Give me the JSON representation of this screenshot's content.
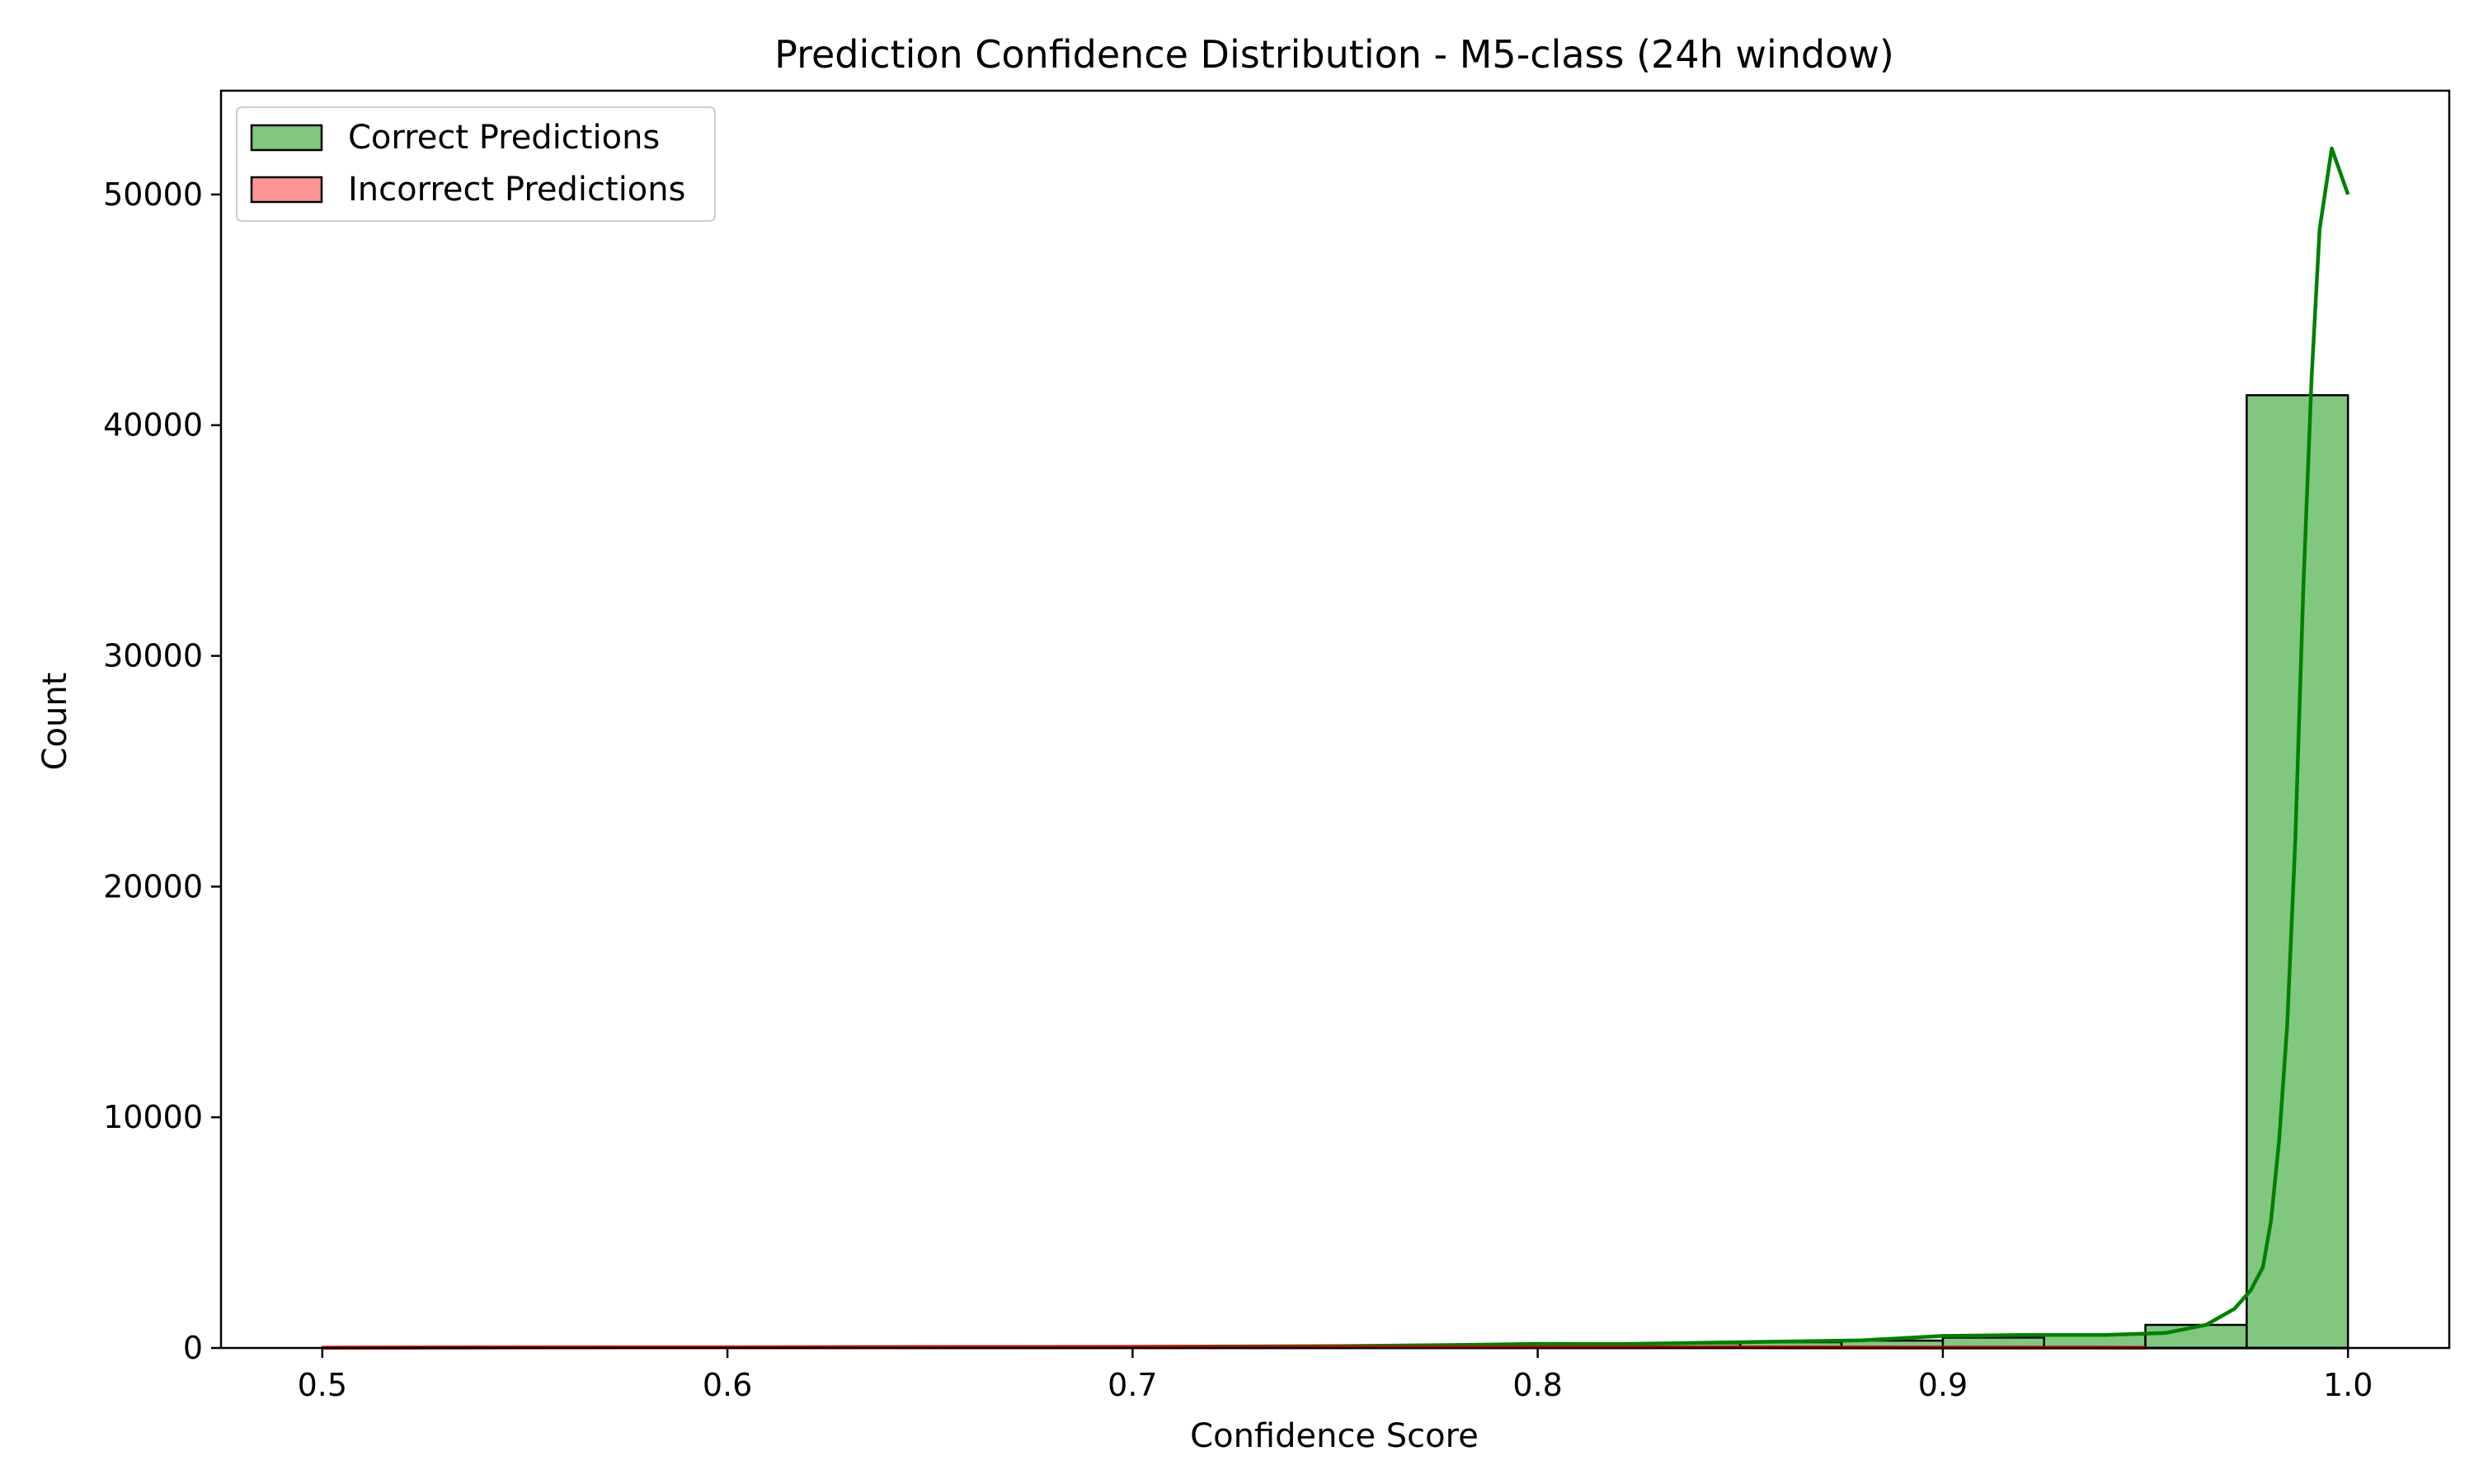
{
  "chart_data": {
    "type": "bar",
    "title": "Prediction Confidence Distribution - M5-class (24h window)",
    "xlabel": "Confidence Score",
    "ylabel": "Count",
    "xlim": [
      0.475,
      1.025
    ],
    "ylim": [
      0,
      54500
    ],
    "xticks": [
      0.5,
      0.6,
      0.7,
      0.8,
      0.9,
      1.0
    ],
    "xtick_labels": [
      "0.5",
      "0.6",
      "0.7",
      "0.8",
      "0.9",
      "1.0"
    ],
    "yticks": [
      0,
      10000,
      20000,
      30000,
      40000,
      50000
    ],
    "ytick_labels": [
      "0",
      "10000",
      "20000",
      "30000",
      "40000",
      "50000"
    ],
    "grid": false,
    "legend_position": "top-left",
    "bin_edges": [
      0.5,
      0.525,
      0.55,
      0.575,
      0.6,
      0.625,
      0.65,
      0.675,
      0.7,
      0.725,
      0.75,
      0.775,
      0.8,
      0.825,
      0.85,
      0.875,
      0.9,
      0.925,
      0.95,
      0.975,
      1.0
    ],
    "series": [
      {
        "name": "Correct Predictions",
        "color": "#4daf4a",
        "kde_color": "#008000",
        "values": [
          20,
          30,
          35,
          40,
          40,
          45,
          45,
          50,
          60,
          70,
          80,
          100,
          150,
          200,
          250,
          320,
          450,
          580,
          1000,
          41300
        ],
        "kde": [
          [
            0.5,
            10
          ],
          [
            0.55,
            20
          ],
          [
            0.6,
            30
          ],
          [
            0.65,
            40
          ],
          [
            0.7,
            50
          ],
          [
            0.75,
            80
          ],
          [
            0.78,
            130
          ],
          [
            0.8,
            180
          ],
          [
            0.82,
            170
          ],
          [
            0.84,
            220
          ],
          [
            0.86,
            280
          ],
          [
            0.88,
            330
          ],
          [
            0.9,
            520
          ],
          [
            0.92,
            560
          ],
          [
            0.94,
            560
          ],
          [
            0.955,
            650
          ],
          [
            0.965,
            1000
          ],
          [
            0.972,
            1700
          ],
          [
            0.976,
            2500
          ],
          [
            0.979,
            3500
          ],
          [
            0.981,
            5500
          ],
          [
            0.983,
            9000
          ],
          [
            0.985,
            14000
          ],
          [
            0.987,
            22000
          ],
          [
            0.989,
            33000
          ],
          [
            0.991,
            42000
          ],
          [
            0.993,
            48500
          ],
          [
            0.996,
            52000
          ],
          [
            1.0,
            50000
          ]
        ]
      },
      {
        "name": "Incorrect Predictions",
        "color": "#ff6666",
        "kde_color": "#e00000",
        "values": [
          10,
          15,
          20,
          25,
          30,
          30,
          30,
          30,
          35,
          35,
          30,
          30,
          25,
          20,
          20,
          15,
          10,
          10,
          5,
          5
        ],
        "kde": [
          [
            0.5,
            15
          ],
          [
            0.55,
            25
          ],
          [
            0.6,
            30
          ],
          [
            0.65,
            35
          ],
          [
            0.7,
            40
          ],
          [
            0.75,
            40
          ],
          [
            0.8,
            30
          ],
          [
            0.85,
            25
          ],
          [
            0.9,
            15
          ],
          [
            0.95,
            10
          ]
        ]
      }
    ]
  }
}
